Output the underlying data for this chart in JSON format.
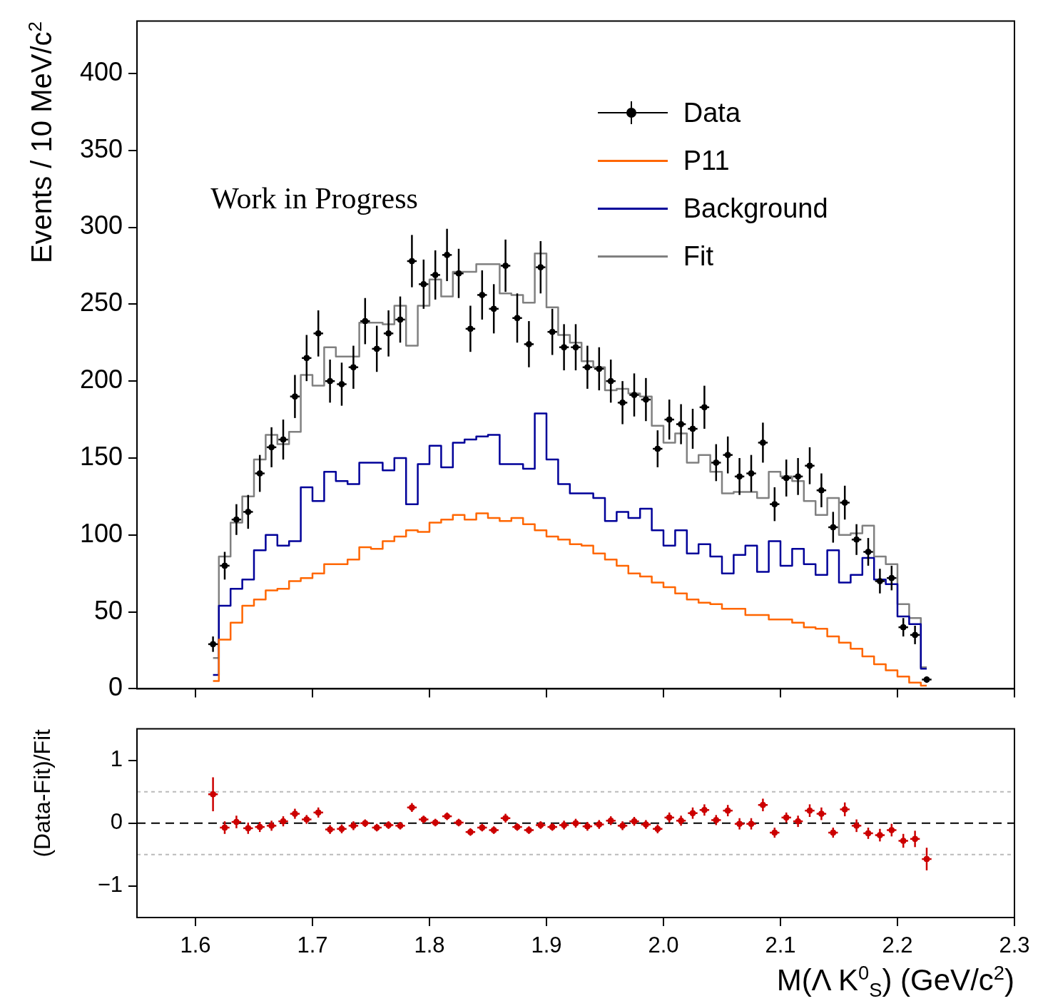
{
  "chart_data": [
    {
      "type": "step",
      "ylabel": "Events / 10 MeV/c$^{2}$",
      "annotations": [
        "Work in Progress"
      ],
      "legend": "top right",
      "tick_labels": "y",
      "xlim": [
        1.55,
        2.3
      ],
      "xticks": [
        1.6,
        1.7,
        1.8,
        1.9,
        2,
        2.1,
        2.2,
        2.3
      ],
      "ylim": [
        0,
        434
      ],
      "yticks": [
        0,
        50,
        100,
        150,
        200,
        250,
        300,
        350,
        400
      ],
      "x": [
        1.615,
        1.625,
        1.635,
        1.645,
        1.655,
        1.665,
        1.675,
        1.685,
        1.695,
        1.705,
        1.715,
        1.725,
        1.735,
        1.745,
        1.755,
        1.765,
        1.775,
        1.785,
        1.795,
        1.805,
        1.815,
        1.825,
        1.835,
        1.845,
        1.855,
        1.865,
        1.875,
        1.885,
        1.895,
        1.905,
        1.915,
        1.925,
        1.935,
        1.945,
        1.955,
        1.965,
        1.975,
        1.985,
        1.995,
        2.005,
        2.015,
        2.025,
        2.035,
        2.045,
        2.055,
        2.065,
        2.075,
        2.085,
        2.095,
        2.105,
        2.115,
        2.125,
        2.135,
        2.145,
        2.155,
        2.165,
        2.175,
        2.185,
        2.195,
        2.205,
        2.215,
        2.225
      ],
      "series": [
        {
          "name": "Data",
          "type": "scatter",
          "marker": "circle",
          "color": "#000000",
          "values": [
            29,
            80,
            110,
            115,
            140,
            157,
            162,
            190,
            215,
            231,
            200,
            198,
            209,
            239,
            221,
            231,
            240,
            278,
            263,
            269,
            282,
            270,
            234,
            256,
            247,
            275,
            241,
            224,
            274,
            232,
            222,
            222,
            209,
            208,
            200,
            186,
            191,
            188,
            156,
            175,
            172,
            169,
            183,
            147,
            152,
            138,
            140,
            160,
            120,
            137,
            138,
            145,
            129,
            105,
            121,
            97,
            89,
            70,
            72,
            40,
            35,
            6
          ],
          "errors": [
            5,
            9,
            10,
            11,
            12,
            13,
            13,
            14,
            15,
            15,
            14,
            14,
            14,
            15,
            15,
            15,
            15,
            17,
            16,
            16,
            17,
            16,
            15,
            16,
            16,
            17,
            16,
            15,
            17,
            15,
            15,
            15,
            14,
            14,
            14,
            14,
            14,
            14,
            12,
            13,
            13,
            13,
            14,
            12,
            12,
            12,
            12,
            13,
            11,
            12,
            12,
            12,
            11,
            10,
            11,
            10,
            9,
            8,
            8,
            6,
            6,
            2
          ],
          "xerrors": [
            0.005,
            0.005,
            0.005,
            0.005,
            0.005,
            0.005,
            0.005,
            0.005,
            0.005,
            0.005,
            0.005,
            0.005,
            0.005,
            0.005,
            0.005,
            0.005,
            0.005,
            0.005,
            0.005,
            0.005,
            0.005,
            0.005,
            0.005,
            0.005,
            0.005,
            0.005,
            0.005,
            0.005,
            0.005,
            0.005,
            0.005,
            0.005,
            0.005,
            0.005,
            0.005,
            0.005,
            0.005,
            0.005,
            0.005,
            0.005,
            0.005,
            0.005,
            0.005,
            0.005,
            0.005,
            0.005,
            0.005,
            0.005,
            0.005,
            0.005,
            0.005,
            0.005,
            0.005,
            0.005,
            0.005,
            0.005,
            0.005,
            0.005,
            0.005,
            0.005,
            0.005,
            0.005
          ]
        },
        {
          "name": "P11",
          "color": "#ff6600",
          "values": [
            5,
            32,
            43,
            54,
            58,
            64,
            65,
            70,
            72,
            75,
            81,
            81,
            84,
            92,
            91,
            96,
            99,
            103,
            102,
            108,
            110,
            113,
            110,
            114,
            111,
            109,
            111,
            107,
            103,
            99,
            97,
            94,
            93,
            88,
            84,
            80,
            75,
            73,
            69,
            66,
            62,
            58,
            56,
            55,
            52,
            52,
            48,
            48,
            45,
            45,
            43,
            40,
            39,
            34,
            30,
            26,
            21,
            16,
            12,
            8,
            4,
            2
          ]
        },
        {
          "name": "Background",
          "color": "#000099",
          "values": [
            9,
            54,
            65,
            71,
            90,
            100,
            93,
            96,
            131,
            122,
            141,
            135,
            133,
            147,
            147,
            142,
            150,
            120,
            146,
            158,
            144,
            160,
            162,
            164,
            165,
            146,
            146,
            143,
            179,
            149,
            133,
            127,
            127,
            124,
            109,
            115,
            111,
            117,
            103,
            93,
            103,
            88,
            94,
            86,
            75,
            87,
            93,
            76,
            96,
            80,
            91,
            81,
            74,
            90,
            69,
            74,
            85,
            71,
            68,
            47,
            42,
            13
          ]
        },
        {
          "name": "Fit",
          "color": "#808080",
          "values": [
            20,
            86,
            108,
            125,
            149,
            165,
            159,
            167,
            204,
            197,
            222,
            216,
            216,
            238,
            238,
            237,
            249,
            223,
            249,
            266,
            255,
            271,
            271,
            276,
            276,
            257,
            256,
            251,
            283,
            248,
            230,
            225,
            213,
            209,
            194,
            195,
            192,
            190,
            171,
            160,
            166,
            147,
            152,
            141,
            127,
            128,
            128,
            124,
            141,
            138,
            135,
            122,
            113,
            124,
            100,
            101,
            106,
            86,
            81,
            55,
            46,
            14
          ]
        }
      ]
    },
    {
      "type": "scatter",
      "color": "#cc0000",
      "marker": "circle",
      "xlabel": "M(Λ K$^{0}$$_{S}$)  (GeV/c$^{2}$)",
      "ylabel": "(Data-Fit)/Fit",
      "xlim": [
        1.55,
        2.3
      ],
      "xticks": [
        1.6,
        1.7,
        1.8,
        1.9,
        {
          "value": 2,
          "label": "2.0"
        },
        2.1,
        2.2,
        2.3
      ],
      "ylim": [
        -1.5,
        1.5
      ],
      "yticks": [
        {
          "value": -1,
          "label": "−1"
        },
        0,
        1
      ],
      "ref_lines": [
        {
          "axis": "y",
          "value": 0,
          "color": "#000000",
          "line_style": "dashed"
        },
        {
          "axis": "y",
          "value": 0.5,
          "color": "#bbbbbb",
          "line_style": "dotted"
        },
        {
          "axis": "y",
          "value": -0.5,
          "color": "#bbbbbb",
          "line_style": "dotted"
        }
      ],
      "x": [
        1.615,
        1.625,
        1.635,
        1.645,
        1.655,
        1.665,
        1.675,
        1.685,
        1.695,
        1.705,
        1.715,
        1.725,
        1.735,
        1.745,
        1.755,
        1.765,
        1.775,
        1.785,
        1.795,
        1.805,
        1.815,
        1.825,
        1.835,
        1.845,
        1.855,
        1.865,
        1.875,
        1.885,
        1.895,
        1.905,
        1.915,
        1.925,
        1.935,
        1.945,
        1.955,
        1.965,
        1.975,
        1.985,
        1.995,
        2.005,
        2.015,
        2.025,
        2.035,
        2.045,
        2.055,
        2.065,
        2.075,
        2.085,
        2.095,
        2.105,
        2.115,
        2.125,
        2.135,
        2.145,
        2.155,
        2.165,
        2.175,
        2.185,
        2.195,
        2.205,
        2.215,
        2.225
      ],
      "values": [
        0.46,
        -0.07,
        0.02,
        -0.08,
        -0.06,
        -0.04,
        0.03,
        0.15,
        0.06,
        0.17,
        -0.1,
        -0.09,
        -0.04,
        0,
        -0.07,
        -0.03,
        -0.04,
        0.25,
        0.06,
        0.01,
        0.11,
        0.01,
        -0.14,
        -0.07,
        -0.11,
        0.08,
        -0.06,
        -0.11,
        -0.03,
        -0.06,
        -0.03,
        0,
        -0.05,
        -0.02,
        0.04,
        -0.04,
        0.03,
        -0.02,
        -0.09,
        0.09,
        0.04,
        0.16,
        0.21,
        0.05,
        0.2,
        -0.01,
        -0.01,
        0.29,
        -0.15,
        0.09,
        0.03,
        0.2,
        0.15,
        -0.15,
        0.22,
        -0.04,
        -0.16,
        -0.19,
        -0.11,
        -0.28,
        -0.25,
        -0.57
      ],
      "errors": [
        0.27,
        0.1,
        0.1,
        0.09,
        0.08,
        0.08,
        0.08,
        0.08,
        0.07,
        0.08,
        0.07,
        0.07,
        0.07,
        0.06,
        0.06,
        0.06,
        0.06,
        0.07,
        0.06,
        0.06,
        0.06,
        0.06,
        0.06,
        0.06,
        0.06,
        0.07,
        0.06,
        0.06,
        0.06,
        0.06,
        0.07,
        0.07,
        0.07,
        0.07,
        0.07,
        0.07,
        0.07,
        0.07,
        0.07,
        0.08,
        0.08,
        0.09,
        0.09,
        0.08,
        0.09,
        0.09,
        0.09,
        0.1,
        0.08,
        0.08,
        0.09,
        0.1,
        0.1,
        0.08,
        0.11,
        0.1,
        0.09,
        0.1,
        0.1,
        0.11,
        0.13,
        0.18
      ],
      "xerrors": [
        0.005,
        0.005,
        0.005,
        0.005,
        0.005,
        0.005,
        0.005,
        0.005,
        0.005,
        0.005,
        0.005,
        0.005,
        0.005,
        0.005,
        0.005,
        0.005,
        0.005,
        0.005,
        0.005,
        0.005,
        0.005,
        0.005,
        0.005,
        0.005,
        0.005,
        0.005,
        0.005,
        0.005,
        0.005,
        0.005,
        0.005,
        0.005,
        0.005,
        0.005,
        0.005,
        0.005,
        0.005,
        0.005,
        0.005,
        0.005,
        0.005,
        0.005,
        0.005,
        0.005,
        0.005,
        0.005,
        0.005,
        0.005,
        0.005,
        0.005,
        0.005,
        0.005,
        0.005,
        0.005,
        0.005,
        0.005,
        0.005,
        0.005,
        0.005,
        0.005,
        0.005,
        0.005
      ]
    }
  ]
}
